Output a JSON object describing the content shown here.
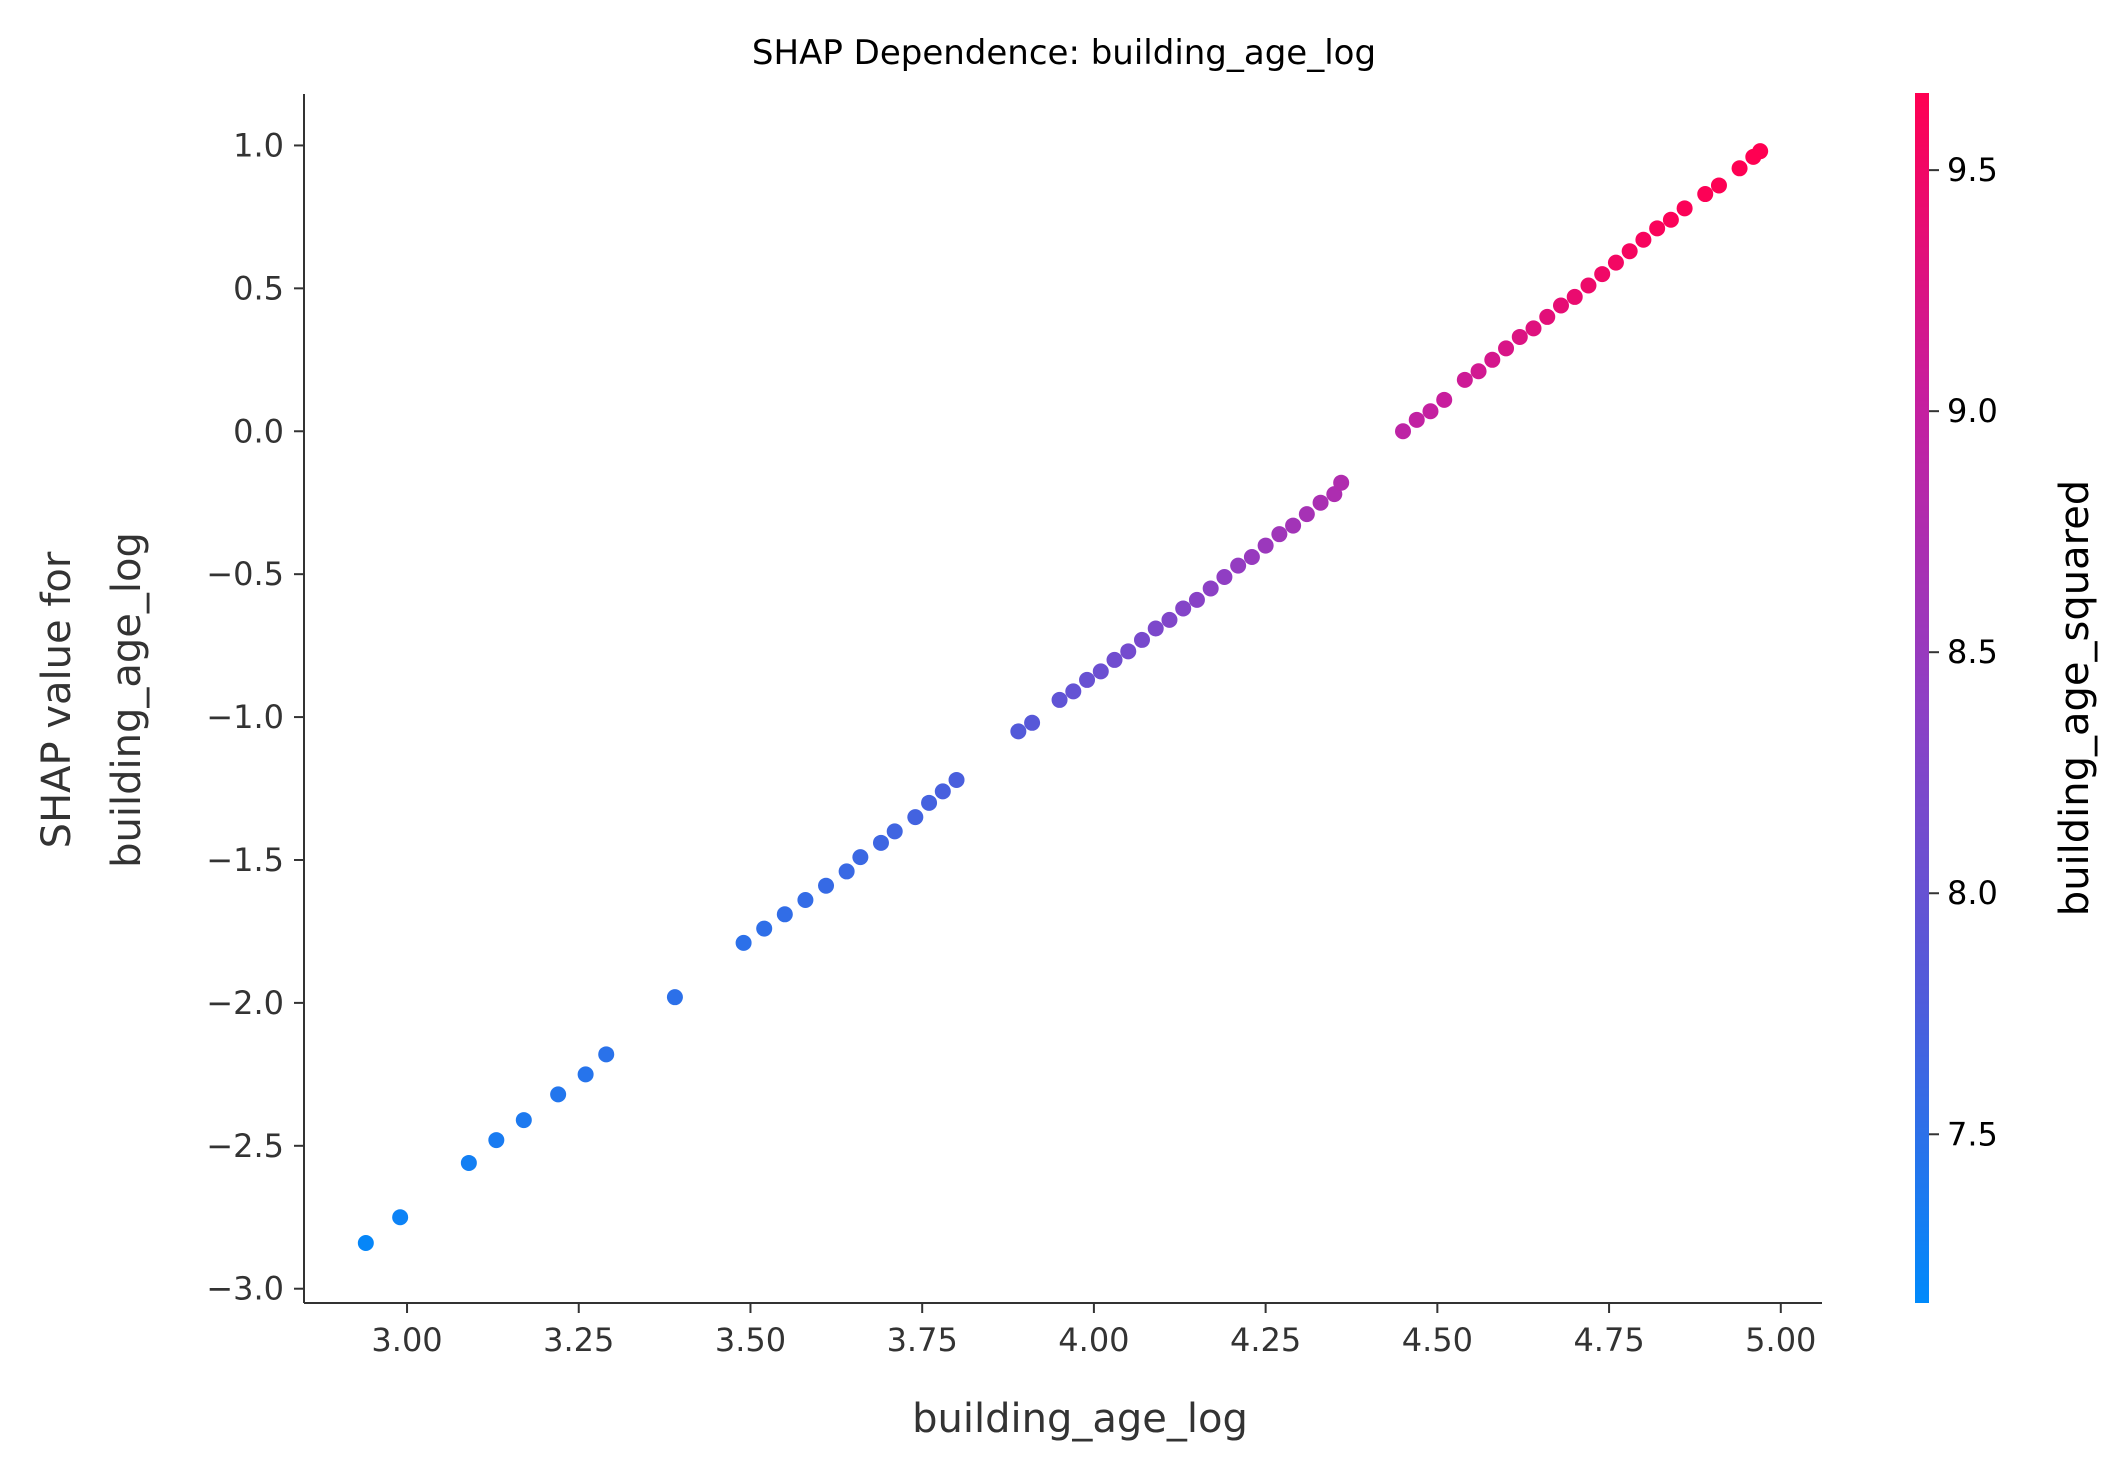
{
  "chart_data": {
    "type": "scatter",
    "title": "SHAP Dependence: building_age_log",
    "xlabel": "building_age_log",
    "ylabel_lines": [
      "SHAP value for",
      "building_age_log"
    ],
    "xlim": [
      2.85,
      5.06
    ],
    "ylim": [
      -3.05,
      1.18
    ],
    "xticks": [
      3.0,
      3.25,
      3.5,
      3.75,
      4.0,
      4.25,
      4.5,
      4.75,
      5.0
    ],
    "xtick_labels": [
      "3.00",
      "3.25",
      "3.50",
      "3.75",
      "4.00",
      "4.25",
      "4.50",
      "4.75",
      "5.00"
    ],
    "yticks": [
      -3.0,
      -2.5,
      -2.0,
      -1.5,
      -1.0,
      -0.5,
      0.0,
      0.5,
      1.0
    ],
    "ytick_labels": [
      "−3.0",
      "−2.5",
      "−2.0",
      "−1.5",
      "−1.0",
      "−0.5",
      "0.0",
      "0.5",
      "1.0"
    ],
    "colorbar": {
      "label": "building_age_squared",
      "range": [
        7.15,
        9.66
      ],
      "ticks": [
        7.5,
        8.0,
        8.5,
        9.0,
        9.5
      ],
      "tick_labels": [
        "7.5",
        "8.0",
        "8.5",
        "9.0",
        "9.5"
      ],
      "colormap": [
        "#008afb",
        "#4f5cdb",
        "#8f3fc4",
        "#c71e9e",
        "#ff0052"
      ]
    },
    "grid": false,
    "points": {
      "x": [
        2.94,
        2.99,
        3.09,
        3.13,
        3.17,
        3.22,
        3.26,
        3.29,
        3.39,
        3.49,
        3.52,
        3.55,
        3.58,
        3.61,
        3.64,
        3.66,
        3.69,
        3.71,
        3.74,
        3.76,
        3.78,
        3.8,
        3.89,
        3.91,
        3.95,
        3.97,
        3.99,
        4.01,
        4.03,
        4.05,
        4.07,
        4.09,
        4.11,
        4.13,
        4.15,
        4.17,
        4.19,
        4.21,
        4.23,
        4.25,
        4.27,
        4.29,
        4.31,
        4.33,
        4.35,
        4.36,
        4.45,
        4.47,
        4.49,
        4.51,
        4.54,
        4.56,
        4.58,
        4.6,
        4.62,
        4.64,
        4.66,
        4.68,
        4.7,
        4.72,
        4.74,
        4.76,
        4.78,
        4.8,
        4.82,
        4.84,
        4.86,
        4.89,
        4.91,
        4.94,
        4.96,
        4.97
      ],
      "y": [
        -2.84,
        -2.75,
        -2.56,
        -2.48,
        -2.41,
        -2.32,
        -2.25,
        -2.18,
        -1.98,
        -1.79,
        -1.74,
        -1.69,
        -1.64,
        -1.59,
        -1.54,
        -1.49,
        -1.44,
        -1.4,
        -1.35,
        -1.3,
        -1.26,
        -1.22,
        -1.05,
        -1.02,
        -0.94,
        -0.91,
        -0.87,
        -0.84,
        -0.8,
        -0.77,
        -0.73,
        -0.69,
        -0.66,
        -0.62,
        -0.59,
        -0.55,
        -0.51,
        -0.47,
        -0.44,
        -0.4,
        -0.36,
        -0.33,
        -0.29,
        -0.25,
        -0.22,
        -0.18,
        0.0,
        0.04,
        0.07,
        0.11,
        0.18,
        0.21,
        0.25,
        0.29,
        0.33,
        0.36,
        0.4,
        0.44,
        0.47,
        0.51,
        0.55,
        0.59,
        0.63,
        0.67,
        0.71,
        0.74,
        0.78,
        0.83,
        0.86,
        0.92,
        0.96,
        0.98
      ],
      "color_value": [
        7.2,
        7.25,
        7.3,
        7.35,
        7.38,
        7.42,
        7.45,
        7.48,
        7.5,
        7.5,
        7.52,
        7.54,
        7.56,
        7.58,
        7.6,
        7.62,
        7.64,
        7.66,
        7.68,
        7.7,
        7.72,
        7.74,
        7.82,
        7.86,
        7.94,
        7.98,
        8.02,
        8.06,
        8.1,
        8.14,
        8.18,
        8.22,
        8.26,
        8.3,
        8.34,
        8.38,
        8.42,
        8.46,
        8.5,
        8.54,
        8.58,
        8.62,
        8.66,
        8.7,
        8.74,
        8.77,
        8.92,
        8.96,
        9.0,
        9.04,
        9.1,
        9.14,
        9.18,
        9.22,
        9.26,
        9.3,
        9.34,
        9.38,
        9.42,
        9.46,
        9.49,
        9.52,
        9.55,
        9.57,
        9.59,
        9.61,
        9.62,
        9.63,
        9.64,
        9.65,
        9.66,
        9.66
      ]
    }
  }
}
